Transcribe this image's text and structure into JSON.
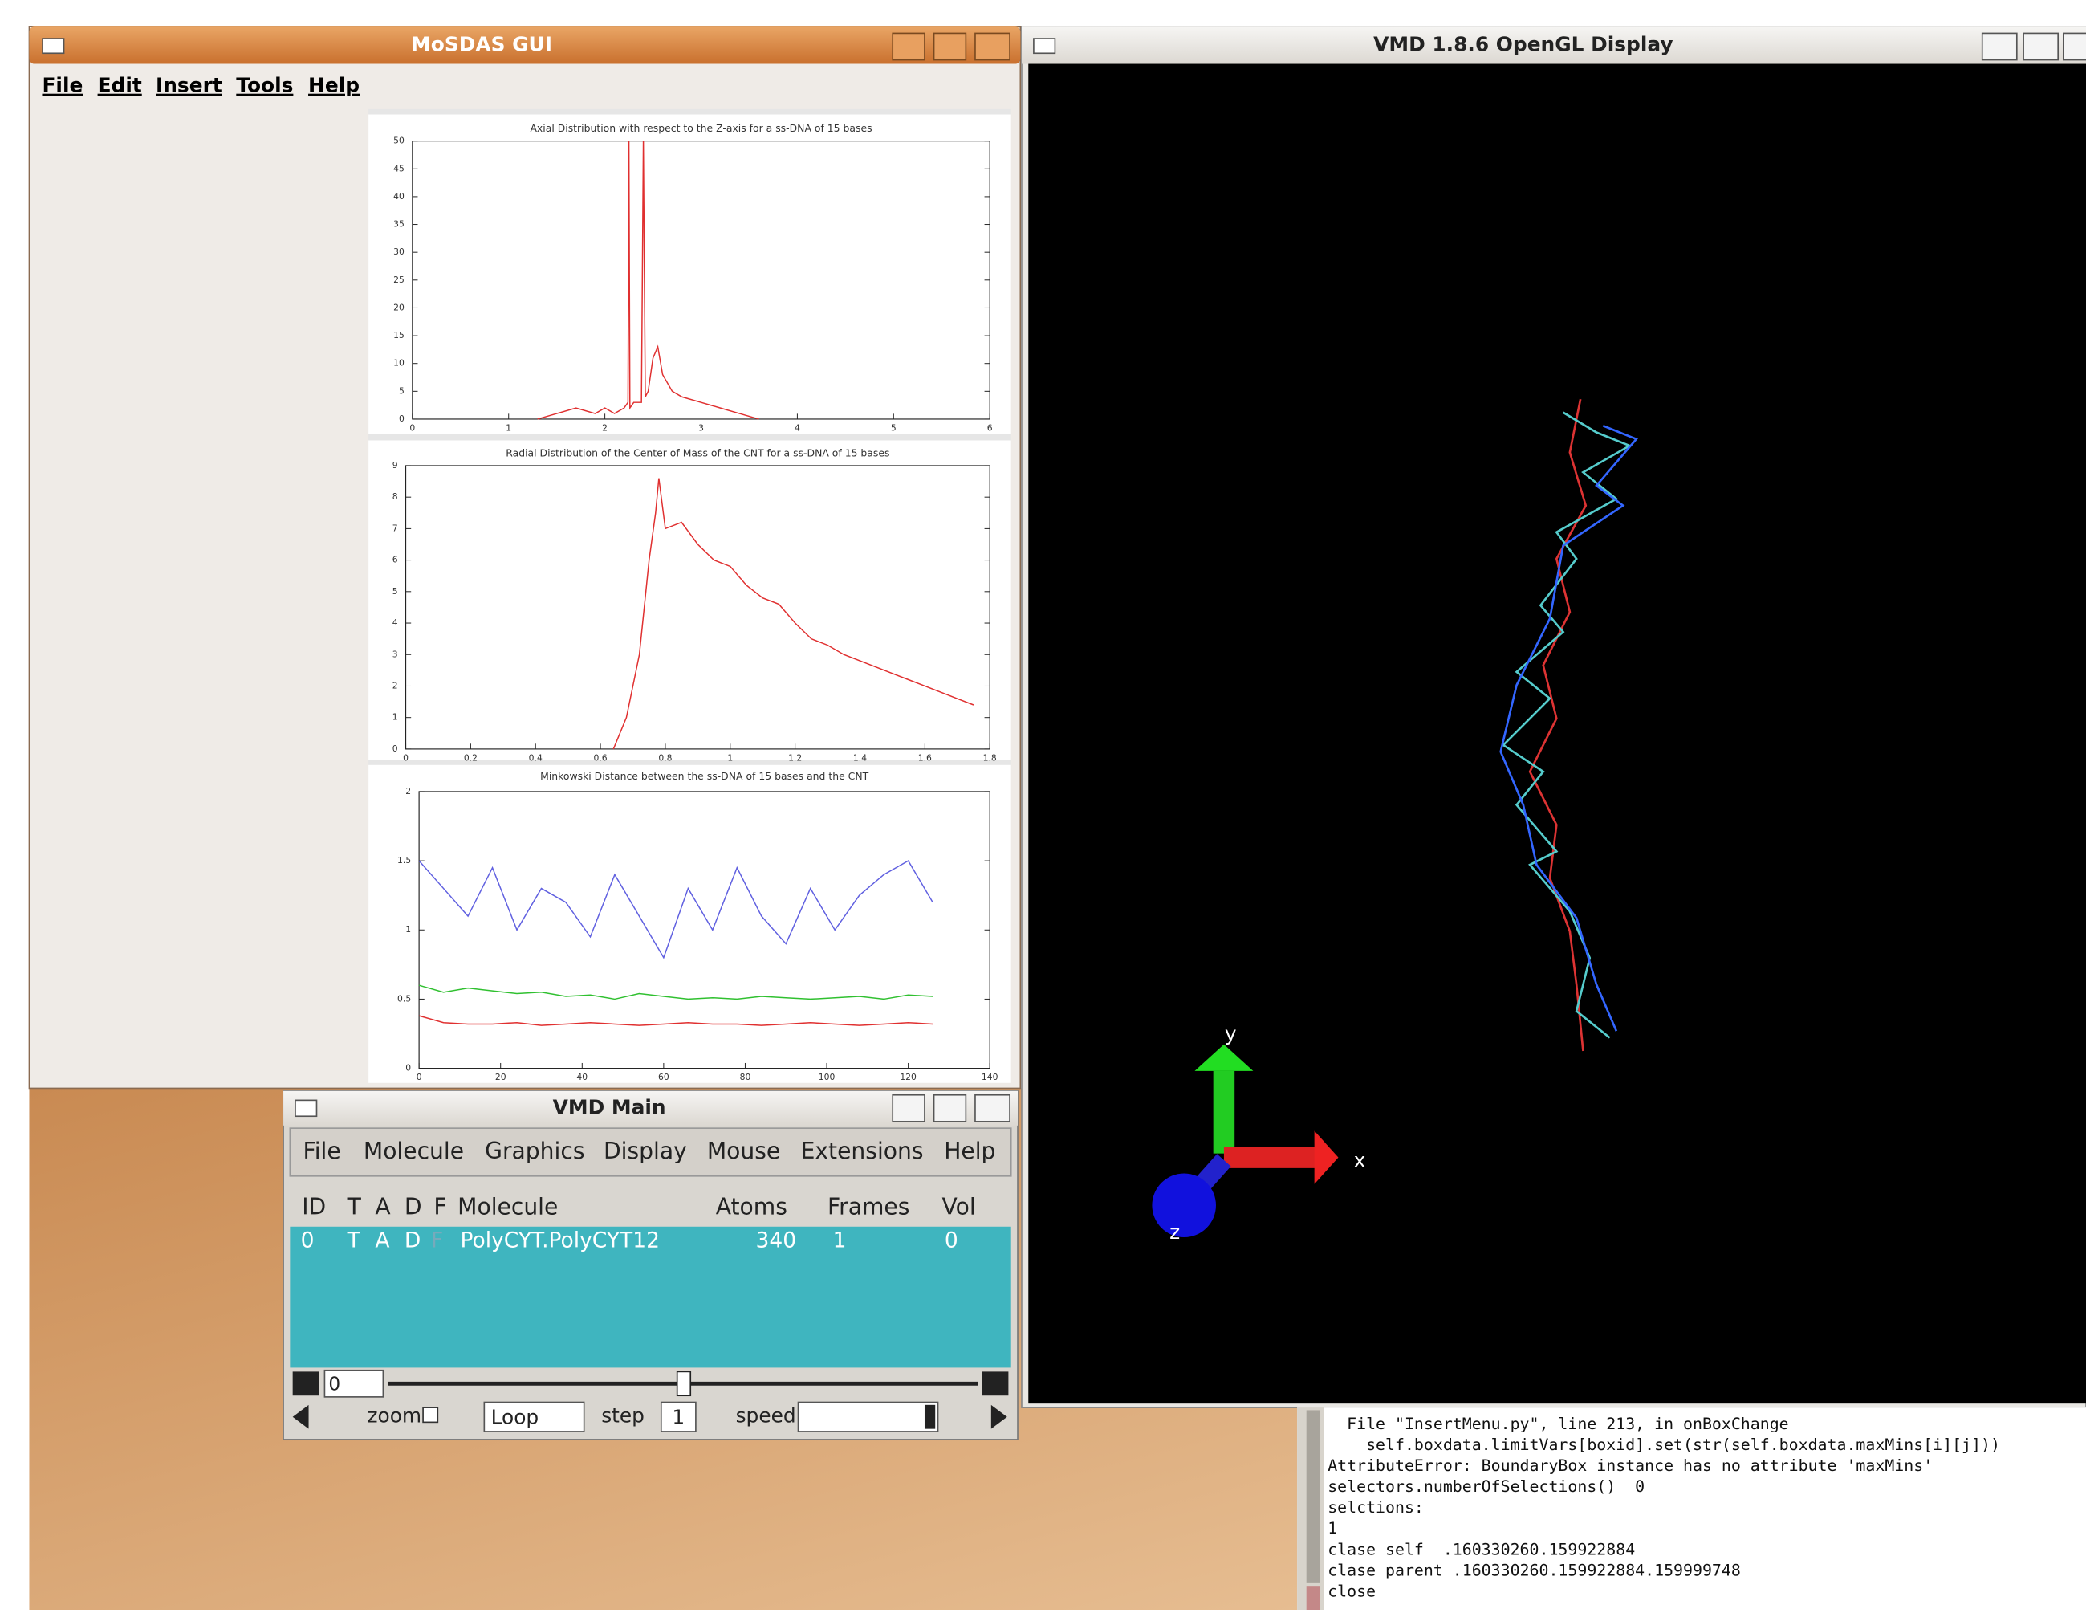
{
  "mosdas": {
    "title": "MoSDAS GUI",
    "menu": [
      "File",
      "Edit",
      "Insert",
      "Tools",
      "Help"
    ]
  },
  "chart_data": [
    {
      "type": "line",
      "title": "Axial Distribution with respect to the Z-axis for a ss-DNA of 15 bases",
      "x": [
        1.3,
        1.5,
        1.7,
        1.9,
        2.0,
        2.1,
        2.2,
        2.24,
        2.25,
        2.26,
        2.3,
        2.38,
        2.4,
        2.42,
        2.45,
        2.5,
        2.55,
        2.6,
        2.7,
        2.8,
        3.0,
        3.2,
        3.4,
        3.6
      ],
      "series": [
        {
          "color": "#e03030",
          "values": [
            0,
            1,
            2,
            1,
            2,
            1,
            2,
            3,
            50,
            2,
            3,
            3,
            50,
            4,
            5,
            11,
            13,
            8,
            5,
            4,
            3,
            2,
            1,
            0
          ]
        }
      ],
      "xlim": [
        0,
        6
      ],
      "ylim": [
        0,
        50
      ],
      "xticks": [
        0,
        1,
        2,
        3,
        4,
        5,
        6
      ],
      "yticks": [
        0,
        5,
        10,
        15,
        20,
        25,
        30,
        35,
        40,
        45,
        50
      ],
      "grid": false
    },
    {
      "type": "line",
      "title": "Radial Distribution of the Center of Mass of the CNT for a ss-DNA of 15 bases",
      "x": [
        0.64,
        0.68,
        0.72,
        0.75,
        0.77,
        0.78,
        0.8,
        0.85,
        0.9,
        0.95,
        1.0,
        1.05,
        1.1,
        1.15,
        1.2,
        1.25,
        1.3,
        1.35,
        1.4,
        1.45,
        1.5,
        1.55,
        1.6,
        1.65,
        1.7,
        1.75
      ],
      "series": [
        {
          "color": "#e03030",
          "values": [
            0,
            1,
            3,
            6,
            7.5,
            8.6,
            7,
            7.2,
            6.5,
            6.0,
            5.8,
            5.2,
            4.8,
            4.6,
            4.0,
            3.5,
            3.3,
            3.0,
            2.8,
            2.6,
            2.4,
            2.2,
            2.0,
            1.8,
            1.6,
            1.4
          ]
        }
      ],
      "xlim": [
        0,
        1.8
      ],
      "ylim": [
        0,
        9
      ],
      "xticks": [
        0,
        0.2,
        0.4,
        0.6,
        0.8,
        1,
        1.2,
        1.4,
        1.6,
        1.8
      ],
      "yticks": [
        0,
        1,
        2,
        3,
        4,
        5,
        6,
        7,
        8,
        9
      ],
      "grid": false
    },
    {
      "type": "line",
      "title": "Minkowski Distance between the ss-DNA of 15 bases and the CNT",
      "x": [
        0,
        6,
        12,
        18,
        24,
        30,
        36,
        42,
        48,
        54,
        60,
        66,
        72,
        78,
        84,
        90,
        96,
        102,
        108,
        114,
        120,
        126
      ],
      "series": [
        {
          "color": "#6060e0",
          "values": [
            1.5,
            1.3,
            1.1,
            1.45,
            1.0,
            1.3,
            1.2,
            0.95,
            1.4,
            1.1,
            0.8,
            1.3,
            1.0,
            1.45,
            1.1,
            0.9,
            1.3,
            1.0,
            1.25,
            1.4,
            1.5,
            1.2
          ]
        },
        {
          "color": "#30c030",
          "values": [
            0.6,
            0.55,
            0.58,
            0.56,
            0.54,
            0.55,
            0.52,
            0.53,
            0.5,
            0.54,
            0.52,
            0.5,
            0.51,
            0.5,
            0.52,
            0.51,
            0.5,
            0.51,
            0.52,
            0.5,
            0.53,
            0.52
          ]
        },
        {
          "color": "#e03030",
          "values": [
            0.38,
            0.33,
            0.32,
            0.32,
            0.33,
            0.31,
            0.32,
            0.33,
            0.32,
            0.31,
            0.32,
            0.33,
            0.32,
            0.32,
            0.31,
            0.32,
            0.33,
            0.32,
            0.31,
            0.32,
            0.33,
            0.32
          ]
        }
      ],
      "xlim": [
        0,
        140
      ],
      "ylim": [
        0,
        2
      ],
      "xticks": [
        0,
        20,
        40,
        60,
        80,
        100,
        120,
        140
      ],
      "yticks": [
        0,
        0.5,
        1,
        1.5,
        2
      ],
      "grid": false
    }
  ],
  "vmd_display": {
    "title": "VMD 1.8.6 OpenGL Display",
    "axes": [
      "y",
      "x",
      "z"
    ]
  },
  "vmd_main": {
    "title": "VMD Main",
    "menu": [
      "File",
      "Molecule",
      "Graphics",
      "Display",
      "Mouse",
      "Extensions",
      "Help"
    ],
    "columns": [
      "ID",
      "T",
      "A",
      "D",
      "F",
      "Molecule",
      "Atoms",
      "Frames",
      "Vol"
    ],
    "rows": [
      [
        "0",
        "T",
        "A",
        "D",
        "F",
        "PolyCYT.PolyCYT12",
        "340",
        "1",
        "0"
      ]
    ],
    "frame": "0",
    "zoom": "zoom",
    "loop": "Loop",
    "step_label": "step",
    "step": "1",
    "speed": "speed"
  },
  "console": {
    "lines": [
      "  File \"InsertMenu.py\", line 213, in onBoxChange",
      "    self.boxdata.limitVars[boxid].set(str(self.boxdata.maxMins[i][j]))",
      "AttributeError: BoundaryBox instance has no attribute 'maxMins'",
      "selectors.numberOfSelections()  0",
      "selctions:",
      "1",
      "clase self  .160330260.159922884",
      "clase parent .160330260.159922884.159999748",
      "close"
    ]
  }
}
